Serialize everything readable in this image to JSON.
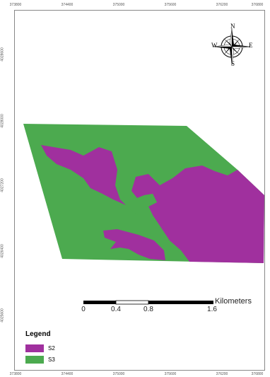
{
  "top_ticks": [
    "373800",
    "374400",
    "375000",
    "375600",
    "376200",
    "376800"
  ],
  "bottom_ticks": [
    "373800",
    "374400",
    "375000",
    "375600",
    "376200",
    "376800"
  ],
  "left_ticks": [
    "4028600",
    "4028000",
    "4027200",
    "4026400",
    "4025600"
  ],
  "north_arrow": {
    "n": "N",
    "s": "S",
    "e": "E",
    "w": "W"
  },
  "scale_bar": {
    "labels": [
      "0",
      "0.4",
      "0.8",
      "1.6"
    ],
    "unit": "Kilometers"
  },
  "legend": {
    "title": "Legend",
    "items": [
      {
        "label": "S2",
        "color": "#a0309e"
      },
      {
        "label": "S3",
        "color": "#4caa4f"
      }
    ]
  },
  "colors": {
    "s2": "#a0309e",
    "s3": "#4caa4f"
  }
}
